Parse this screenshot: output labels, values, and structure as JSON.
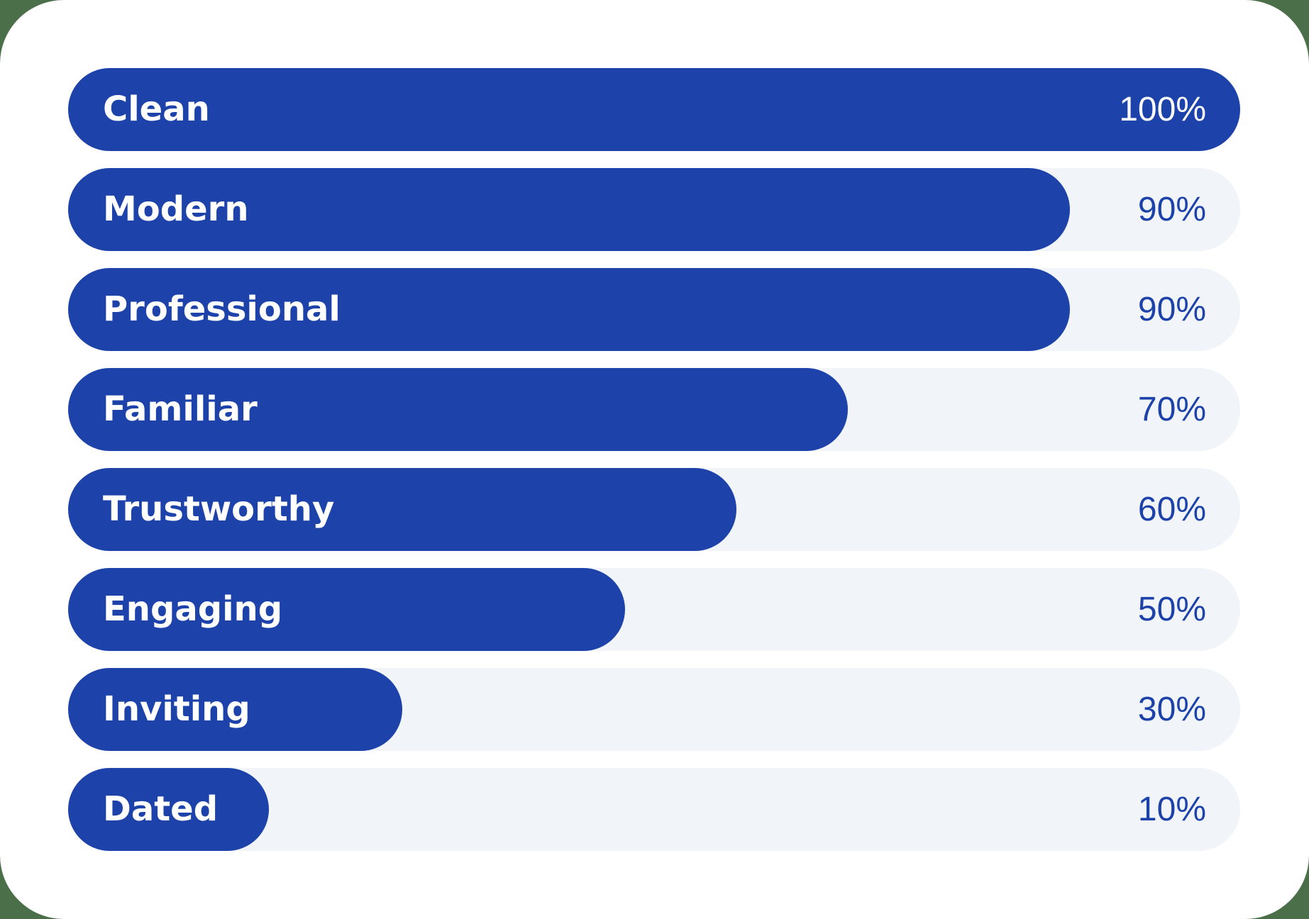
{
  "colors": {
    "bar": "#1d43ab",
    "track": "#f1f5f9",
    "card": "#ffffff",
    "background": "#4b7049"
  },
  "chart_data": {
    "type": "bar",
    "orientation": "horizontal",
    "title": "",
    "xlabel": "",
    "ylabel": "",
    "xlim": [
      0,
      100
    ],
    "grid": false,
    "categories": [
      "Clean",
      "Modern",
      "Professional",
      "Familiar",
      "Trustworthy",
      "Engaging",
      "Inviting",
      "Dated"
    ],
    "values": [
      100,
      90,
      90,
      70,
      60,
      50,
      30,
      10
    ],
    "labels": [
      "100%",
      "90%",
      "90%",
      "70%",
      "60%",
      "50%",
      "30%",
      "10%"
    ]
  }
}
